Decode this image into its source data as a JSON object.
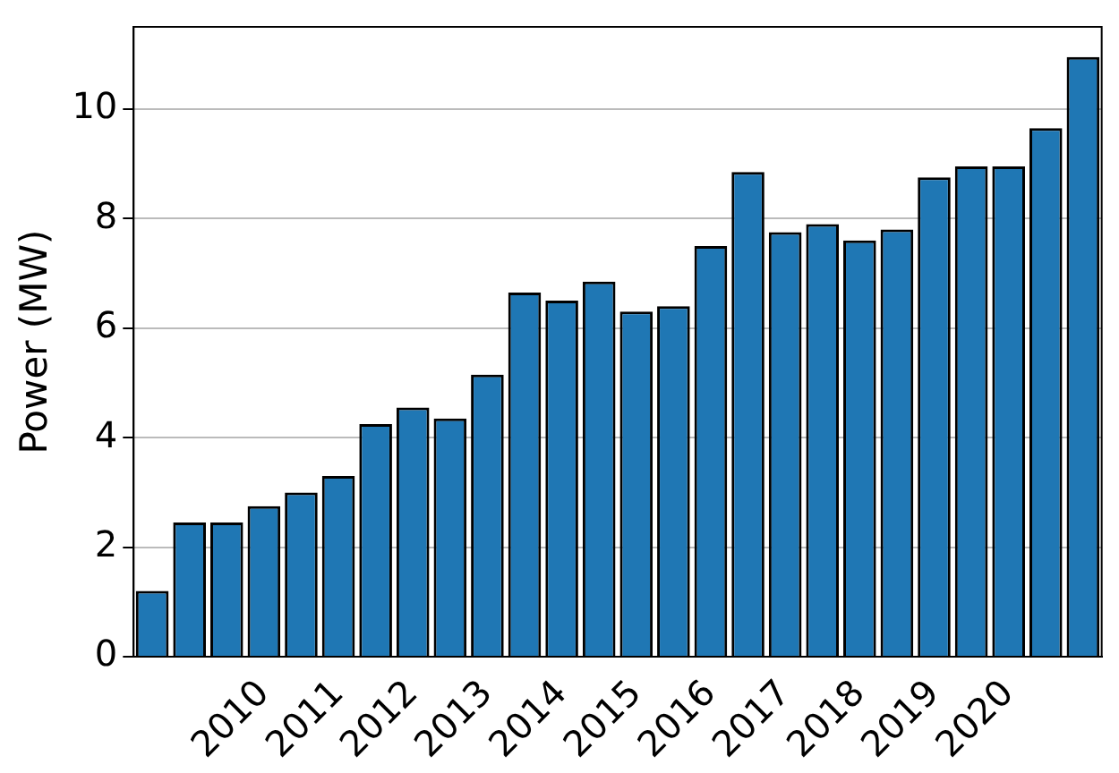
{
  "chart_data": {
    "type": "bar",
    "ylabel": "Power (MW)",
    "categories": [
      null,
      null,
      null,
      "2010",
      null,
      "2011",
      null,
      "2012",
      null,
      "2013",
      null,
      "2014",
      null,
      "2015",
      null,
      "2016",
      null,
      "2017",
      null,
      "2018",
      null,
      "2019",
      null,
      "2020",
      null,
      null
    ],
    "values": [
      1.2,
      2.45,
      2.45,
      2.75,
      3.0,
      3.3,
      4.25,
      4.55,
      4.35,
      5.15,
      6.65,
      6.5,
      6.85,
      6.3,
      6.4,
      7.5,
      8.85,
      7.75,
      7.9,
      7.6,
      7.8,
      8.75,
      8.95,
      8.95,
      9.65,
      10.95
    ],
    "color": "#1f77b4",
    "ylim": [
      0,
      11.5
    ],
    "yticks": [
      0,
      2,
      4,
      6,
      8,
      10
    ],
    "grid": "y",
    "legend": false
  }
}
